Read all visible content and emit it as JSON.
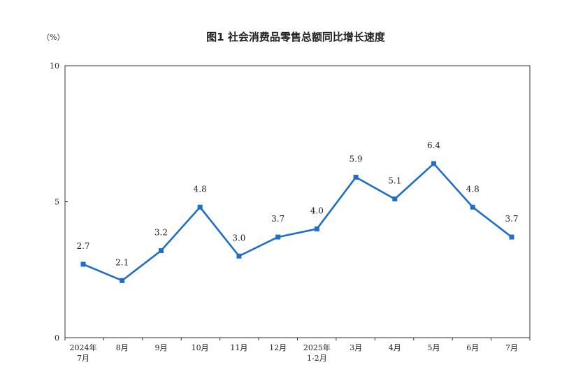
{
  "chart_data": {
    "type": "line",
    "title": "图1  社会消费品零售总额同比增长速度",
    "unit": "（%）",
    "categories": [
      [
        "2024年",
        "7月"
      ],
      [
        "8月"
      ],
      [
        "9月"
      ],
      [
        "10月"
      ],
      [
        "11月"
      ],
      [
        "12月"
      ],
      [
        "2025年",
        "1-2月"
      ],
      [
        "3月"
      ],
      [
        "4月"
      ],
      [
        "5月"
      ],
      [
        "6月"
      ],
      [
        "7月"
      ]
    ],
    "series": [
      {
        "values": [
          2.7,
          2.1,
          3.2,
          4.8,
          3.0,
          3.7,
          4.0,
          5.9,
          5.1,
          6.4,
          4.8,
          3.7
        ],
        "labels": [
          "2.7",
          "2.1",
          "3.2",
          "4.8",
          "3.0",
          "3.7",
          "4.0",
          "5.9",
          "5.1",
          "6.4",
          "4.8",
          "3.7"
        ]
      }
    ],
    "yticks": [
      "0",
      "5",
      "10"
    ],
    "ylim": [
      0,
      10
    ],
    "grid": false,
    "line_color": "#1f6fc8"
  }
}
